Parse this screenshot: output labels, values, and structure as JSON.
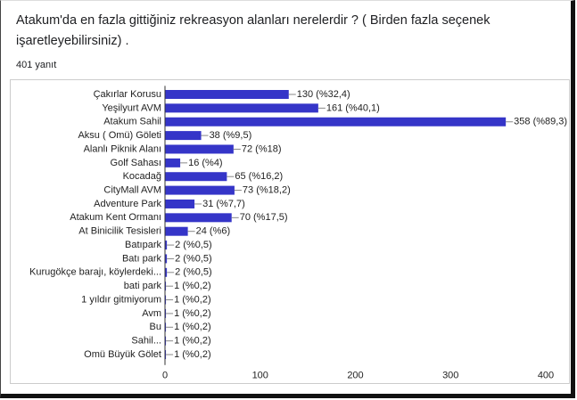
{
  "chart_data": {
    "type": "bar",
    "orientation": "horizontal",
    "title": "Atakum'da en fazla gittiğiniz rekreasyon alanları nerelerdir ? ( Birden fazla seçenek işaretleyebilirsiniz) .",
    "subtitle": "401 yanıt",
    "categories": [
      "Çakırlar Korusu",
      "Yeşilyurt AVM",
      "Atakum Sahil",
      "Aksu ( Omü) Göleti",
      "Alanlı Piknik Alanı",
      "Golf Sahası",
      "Kocadağ",
      "CityMall AVM",
      "Adventure Park",
      "Atakum Kent Ormanı",
      "At Binicilik Tesisleri",
      "Batıpark",
      "Batı park",
      "Kurugökçe barajı, köylerdeki...",
      "bati park",
      "1 yıldır gitmiyorum",
      "Avm",
      "Bu",
      "Sahil...",
      "Omü Büyük Gölet"
    ],
    "values": [
      130,
      161,
      358,
      38,
      72,
      16,
      65,
      73,
      31,
      70,
      24,
      2,
      2,
      2,
      1,
      1,
      1,
      1,
      1,
      1
    ],
    "value_labels": [
      "130 (%32,4)",
      "161 (%40,1)",
      "358 (%89,3)",
      "38 (%9,5)",
      "72 (%18)",
      "16 (%4)",
      "65 (%16,2)",
      "73 (%18,2)",
      "31 (%7,7)",
      "70 (%17,5)",
      "24 (%6)",
      "2 (%0,5)",
      "2 (%0,5)",
      "2 (%0,5)",
      "1 (%0,2)",
      "1 (%0,2)",
      "1 (%0,2)",
      "1 (%0,2)",
      "1 (%0,2)",
      "1 (%0,2)"
    ],
    "color": "#3535c8",
    "xlim": [
      0,
      400
    ],
    "xticks": [
      0,
      100,
      200,
      300,
      400
    ]
  }
}
